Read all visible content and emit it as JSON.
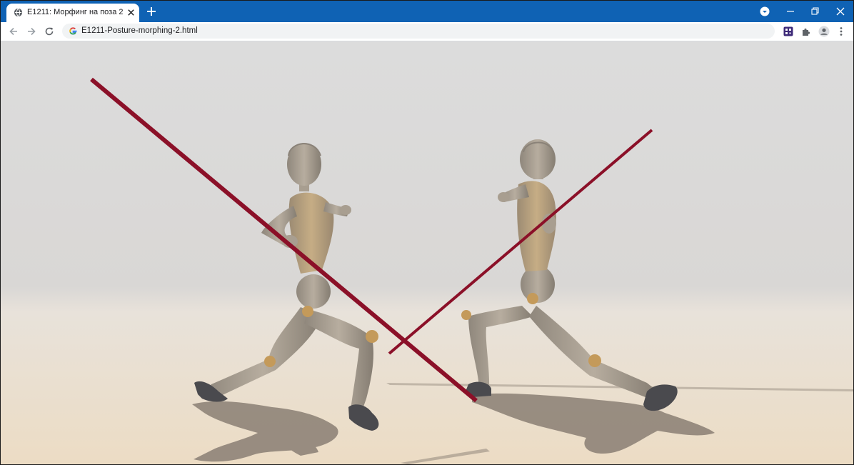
{
  "browser": {
    "tab_title": "E1211: Морфинг на поза 2",
    "url": "E1211-Posture-morphing-2.html",
    "colors": {
      "titlebar": "#0f62b4",
      "toolbar": "#ffffff",
      "omnibox": "#f1f3f4"
    },
    "icons": {
      "favicon": "globe-icon",
      "close": "close-icon",
      "new_tab": "plus-icon",
      "profile_menu": "chevron-down-circle-icon",
      "minimize": "minimize-icon",
      "restore": "restore-icon",
      "window_close": "close-icon",
      "back": "arrow-left-icon",
      "forward": "arrow-right-icon",
      "reload": "reload-icon",
      "site_info": "google-g-icon",
      "extension_1": "qr-extension-icon",
      "extensions": "puzzle-icon",
      "profile": "person-icon",
      "menu": "kebab-menu-icon"
    }
  },
  "scene": {
    "colors": {
      "sky_top": "#dcdcdc",
      "sky_bottom": "#d8d6d3",
      "floor_near": "#ecdcc4",
      "floor_far": "#e8e2da",
      "mannequin": "#a89e90",
      "joint": "#c49a5a",
      "shoe": "#4a4a4e",
      "pole": "#8b1028",
      "shadow": "#8a7f74"
    }
  }
}
